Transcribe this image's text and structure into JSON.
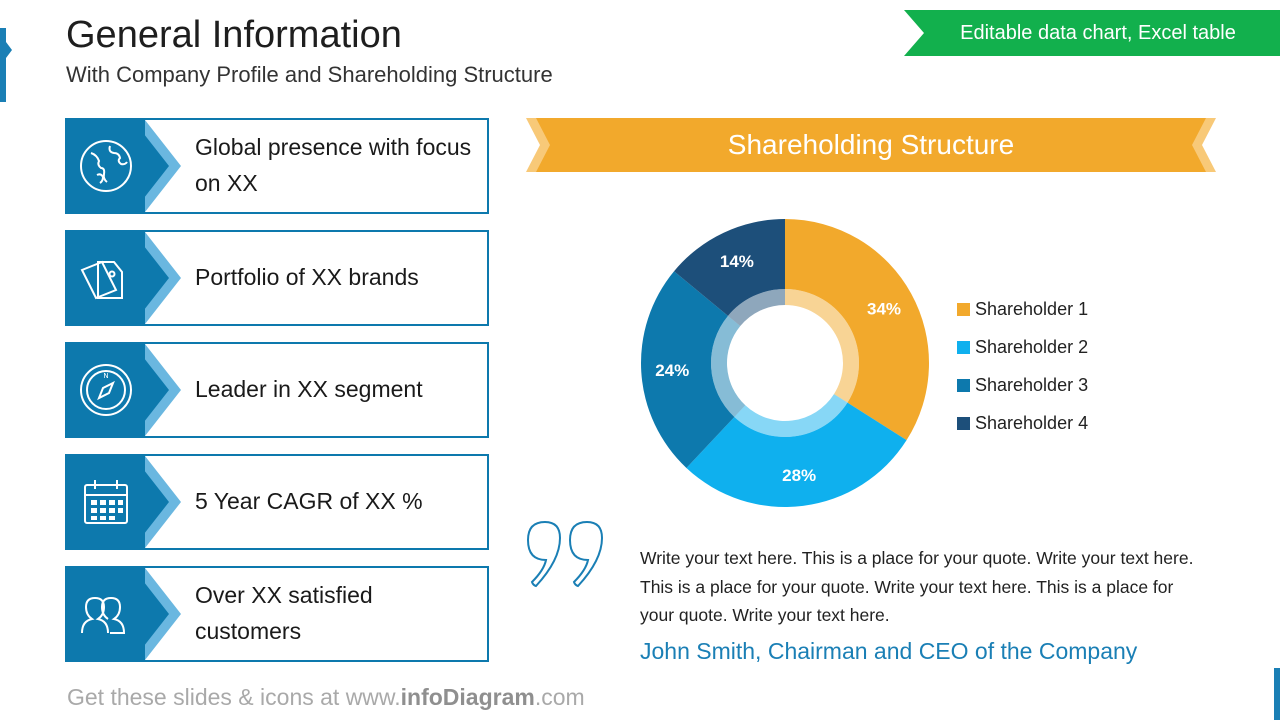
{
  "header": {
    "title": "General Information",
    "subtitle": "With Company Profile and Shareholding Structure",
    "badge": "Editable data chart, Excel table"
  },
  "features": [
    {
      "icon": "globe-icon",
      "text": "Global presence with focus on XX"
    },
    {
      "icon": "price-tags-icon",
      "text": "Portfolio of XX brands"
    },
    {
      "icon": "compass-icon",
      "text": "Leader in XX segment"
    },
    {
      "icon": "calendar-icon",
      "text": "5 Year CAGR of XX %"
    },
    {
      "icon": "users-icon",
      "text": "Over XX satisfied customers"
    }
  ],
  "shareholding": {
    "banner_title": "Shareholding Structure"
  },
  "chart_data": {
    "type": "pie",
    "variant": "donut",
    "title": "Shareholding Structure",
    "categories": [
      "Shareholder 1",
      "Shareholder 2",
      "Shareholder 3",
      "Shareholder 4"
    ],
    "values": [
      34,
      28,
      24,
      14
    ],
    "labels": [
      "34%",
      "28%",
      "24%",
      "14%"
    ],
    "colors": [
      "#f2a92c",
      "#0fb0ee",
      "#0d79ad",
      "#1d4f7a"
    ],
    "legend_position": "right"
  },
  "quote": {
    "text": "Write your text here. This is a place for your quote. Write your text here. This is a place for your quote. Write your text here. This is a place for your quote. Write your text here.",
    "author": "John Smith, Chairman and CEO of the Company"
  },
  "footer": {
    "prefix": "Get these slides & icons at www.",
    "brand": "infoDiagram",
    "suffix": ".com"
  },
  "colors": {
    "primary_blue": "#0d79ad",
    "light_blue": "#6ab7e0",
    "orange": "#f2a92c",
    "green": "#12b04d"
  }
}
